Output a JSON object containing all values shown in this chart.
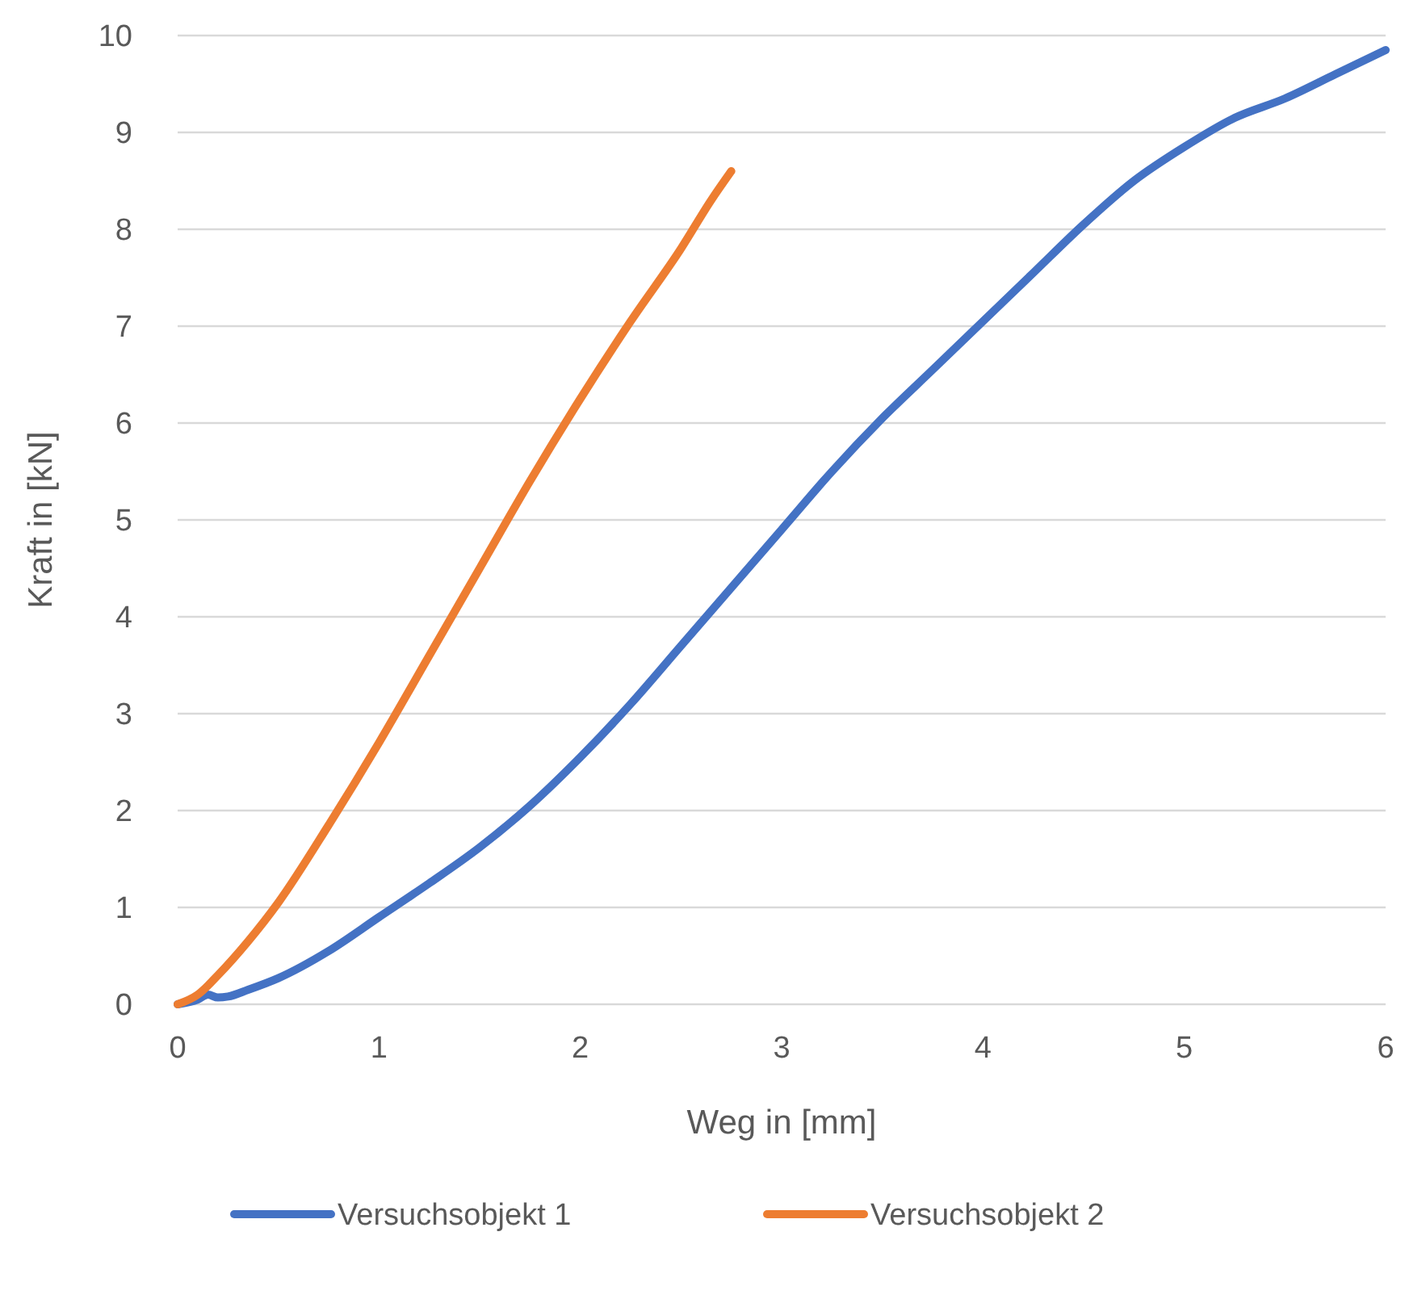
{
  "chart_data": {
    "type": "line",
    "xlabel": "Weg in [mm]",
    "ylabel": "Kraft in [kN]",
    "xlim": [
      0,
      6
    ],
    "xticks": [
      0,
      1,
      2,
      3,
      4,
      5,
      6
    ],
    "ylim": [
      0,
      10
    ],
    "yticks": [
      0,
      1,
      2,
      3,
      4,
      5,
      6,
      7,
      8,
      9,
      10
    ],
    "grid": "y",
    "legend": "bottom",
    "marker": "none",
    "line_style": "solid",
    "series": [
      {
        "name": "Versuchsobjekt 1",
        "color": "#4472c4",
        "x": [
          0,
          0.1,
          0.15,
          0.2,
          0.25,
          0.35,
          0.5,
          0.75,
          1,
          1.25,
          1.5,
          1.75,
          2,
          2.25,
          2.5,
          2.75,
          3,
          3.25,
          3.5,
          3.75,
          4,
          4.25,
          4.5,
          4.75,
          5,
          5.25,
          5.5,
          5.75,
          6
        ],
        "values": [
          0,
          0.05,
          0.1,
          0.07,
          0.08,
          0.15,
          0.27,
          0.55,
          0.9,
          1.25,
          1.62,
          2.05,
          2.55,
          3.1,
          3.7,
          4.3,
          4.9,
          5.5,
          6.05,
          6.55,
          7.05,
          7.55,
          8.05,
          8.5,
          8.85,
          9.15,
          9.35,
          9.6,
          9.85
        ]
      },
      {
        "name": "Versuchsobjekt 2",
        "color": "#ed7d31",
        "x": [
          0,
          0.1,
          0.2,
          0.35,
          0.5,
          0.75,
          1,
          1.25,
          1.5,
          1.75,
          2,
          2.25,
          2.5,
          2.65,
          2.75
        ],
        "values": [
          0,
          0.1,
          0.3,
          0.65,
          1.05,
          1.85,
          2.7,
          3.6,
          4.5,
          5.4,
          6.25,
          7.05,
          7.8,
          8.3,
          8.6
        ]
      }
    ]
  }
}
